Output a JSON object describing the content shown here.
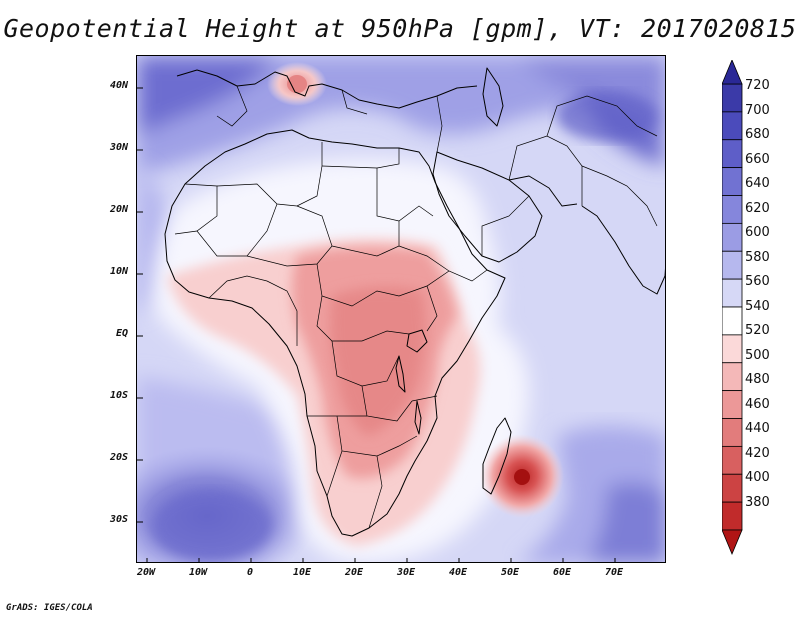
{
  "title": "Geopotential Height at 950hPa [gpm], VT: 2017020815",
  "credit": "GrADS: IGES/COLA",
  "latitude_labels": [
    "40N",
    "30N",
    "20N",
    "10N",
    "EQ",
    "10S",
    "20S",
    "30S"
  ],
  "longitude_labels": [
    "20W",
    "10W",
    "0",
    "10E",
    "20E",
    "30E",
    "40E",
    "50E",
    "60E",
    "70E"
  ],
  "colorbar": {
    "labels": [
      "720",
      "700",
      "680",
      "660",
      "640",
      "620",
      "600",
      "580",
      "560",
      "540",
      "520",
      "500",
      "480",
      "460",
      "440",
      "420",
      "400",
      "380"
    ],
    "colors": [
      "#2a2896",
      "#3b3aa8",
      "#4b4bbb",
      "#5e5ec8",
      "#7172d2",
      "#8586dc",
      "#9b9ce4",
      "#b6b8ee",
      "#d6d8f6",
      "#ffffff",
      "#fbd9d9",
      "#f4b8b8",
      "#ec9898",
      "#e27c7c",
      "#d86060",
      "#cc4343",
      "#c12b2b",
      "#b01515"
    ]
  },
  "map": {
    "region": "Africa, Arabian Peninsula and Indian Ocean",
    "colors": {
      "ocean_deep": "#7878d6",
      "ocean_mid": "#a5a6e9",
      "ocean_light": "#c8caf3",
      "ocean_pale": "#dcdef8",
      "land_white": "#ffffff",
      "land_pink": "#f6c4c4",
      "land_red": "#ec9c9c",
      "low_center": "#c83030",
      "border": "#000000"
    }
  }
}
